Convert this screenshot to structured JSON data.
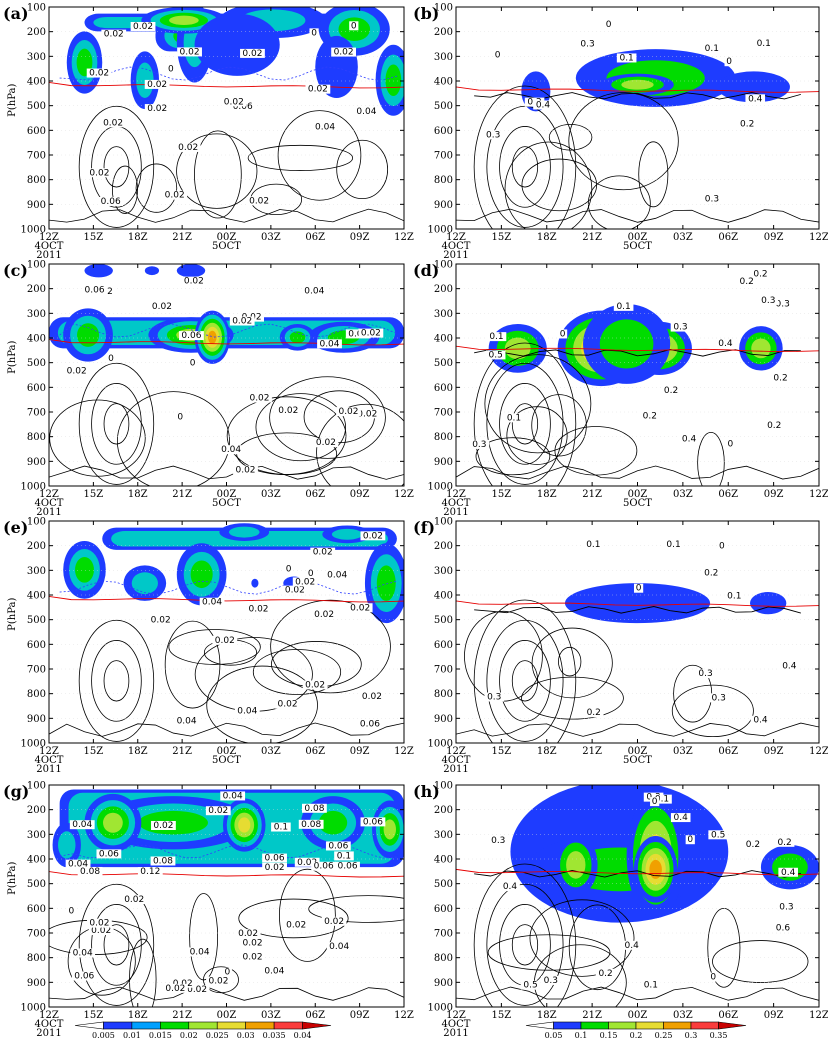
{
  "chart_data": [
    {
      "panel": "(a)",
      "type": "heatmap",
      "ylabel": "P(hPa)",
      "yticks": [
        "100",
        "200",
        "300",
        "400",
        "500",
        "600",
        "700",
        "800",
        "900",
        "1000"
      ],
      "ylim": [
        1000,
        100
      ],
      "xticks": [
        "12Z",
        "15Z",
        "18Z",
        "21Z",
        "00Z",
        "03Z",
        "06Z",
        "09Z",
        "12Z"
      ],
      "xdate_labels": [
        {
          "tick": 0,
          "text": "4OCT"
        },
        {
          "tick": 4,
          "text": "5OCT"
        }
      ],
      "year": "2011",
      "fill_scale": "a",
      "contour_labels": [
        "0.02",
        "0.02",
        "0.02",
        "0.02",
        "0.02",
        "0.02",
        "0.02",
        "0.02",
        "0",
        "0",
        "0",
        "0.02",
        "0.02",
        "0.04",
        "0.02",
        "0.06",
        "0.06",
        "0.04",
        "0.02",
        "0.02",
        "0.02",
        "0.02"
      ]
    },
    {
      "panel": "(b)",
      "type": "heatmap",
      "ylabel": "",
      "yticks": [
        "100",
        "200",
        "300",
        "400",
        "500",
        "600",
        "700",
        "800",
        "900",
        "1000"
      ],
      "ylim": [
        1000,
        100
      ],
      "xticks": [
        "12Z",
        "15Z",
        "18Z",
        "21Z",
        "00Z",
        "03Z",
        "06Z",
        "09Z",
        "12Z"
      ],
      "xdate_labels": [
        {
          "tick": 0,
          "text": "4OCT"
        },
        {
          "tick": 4,
          "text": "5OCT"
        }
      ],
      "year": "2011",
      "fill_scale": "b",
      "contour_labels": [
        "0.1",
        "0",
        "0.1",
        "0",
        "0.1",
        "0",
        "0.3",
        "0.2",
        "0.2",
        "0.4",
        "0.3",
        "0.4",
        "0.3"
      ]
    },
    {
      "panel": "(c)",
      "type": "heatmap",
      "ylabel": "P(hPa)",
      "yticks": [
        "100",
        "200",
        "300",
        "400",
        "500",
        "600",
        "700",
        "800",
        "900",
        "1000"
      ],
      "ylim": [
        1000,
        100
      ],
      "xticks": [
        "12Z",
        "15Z",
        "18Z",
        "21Z",
        "00Z",
        "03Z",
        "06Z",
        "09Z",
        "12Z"
      ],
      "xdate_labels": [
        {
          "tick": 0,
          "text": "4OCT"
        },
        {
          "tick": 4,
          "text": "5OCT"
        }
      ],
      "year": "2011",
      "fill_scale": "a",
      "contour_labels": [
        "0.02",
        "0.04",
        "0.02",
        "0.04",
        "0.02",
        "0.02",
        "0.02",
        "0.06",
        "0.06",
        "0.04",
        "0.02",
        "0",
        "0",
        "0",
        "0.04",
        "0.02",
        "0.02",
        "0.02",
        "0.02",
        "0.02",
        "0.02",
        "0.02"
      ]
    },
    {
      "panel": "(d)",
      "type": "heatmap",
      "ylabel": "",
      "yticks": [
        "100",
        "200",
        "300",
        "400",
        "500",
        "600",
        "700",
        "800",
        "900",
        "1000"
      ],
      "ylim": [
        1000,
        100
      ],
      "xticks": [
        "12Z",
        "15Z",
        "18Z",
        "21Z",
        "00Z",
        "03Z",
        "06Z",
        "09Z",
        "12Z"
      ],
      "xdate_labels": [
        {
          "tick": 0,
          "text": "4OCT"
        },
        {
          "tick": 4,
          "text": "5OCT"
        }
      ],
      "year": "2011",
      "fill_scale": "b",
      "contour_labels": [
        "0",
        "0.1",
        "0.3",
        "0.4",
        "0.1",
        "0.2",
        "0.2",
        "0.3",
        "0.3",
        "0",
        "0.2",
        "0.5",
        "0.2",
        "0.1",
        "0.2",
        "0.4",
        "0.3",
        "0.2"
      ]
    },
    {
      "panel": "(e)",
      "type": "heatmap",
      "ylabel": "P(hPa)",
      "yticks": [
        "100",
        "200",
        "300",
        "400",
        "500",
        "600",
        "700",
        "800",
        "900",
        "1000"
      ],
      "ylim": [
        1000,
        100
      ],
      "xticks": [
        "12Z",
        "15Z",
        "18Z",
        "21Z",
        "00Z",
        "03Z",
        "06Z",
        "09Z",
        "12Z"
      ],
      "xdate_labels": [
        {
          "tick": 0,
          "text": "4OCT"
        },
        {
          "tick": 4,
          "text": "5OCT"
        }
      ],
      "year": "2011",
      "fill_scale": "a",
      "contour_labels": [
        "0.02",
        "0.02",
        "0.02",
        "0",
        "0",
        "0.02",
        "0.02",
        "0.04",
        "0.04",
        "0.02",
        "0.02",
        "0.06",
        "0.04",
        "0.02",
        "0.02",
        "0.04",
        "0.02",
        "0.02",
        "0.02"
      ]
    },
    {
      "panel": "(f)",
      "type": "heatmap",
      "ylabel": "",
      "yticks": [
        "100",
        "200",
        "300",
        "400",
        "500",
        "600",
        "700",
        "800",
        "900",
        "1000"
      ],
      "ylim": [
        1000,
        100
      ],
      "xticks": [
        "12Z",
        "15Z",
        "18Z",
        "21Z",
        "00Z",
        "03Z",
        "06Z",
        "09Z",
        "12Z"
      ],
      "xdate_labels": [
        {
          "tick": 0,
          "text": "4OCT"
        },
        {
          "tick": 4,
          "text": "5OCT"
        }
      ],
      "year": "2011",
      "fill_scale": "b",
      "contour_labels": [
        "0.1",
        "0",
        "0.1",
        "0",
        "0.1",
        "0.2",
        "0.2",
        "0.3",
        "0.4",
        "0.3",
        "0.3",
        "0.4"
      ]
    },
    {
      "panel": "(g)",
      "type": "heatmap",
      "ylabel": "P(hPa)",
      "yticks": [
        "100",
        "200",
        "300",
        "400",
        "500",
        "600",
        "700",
        "800",
        "900",
        "1000"
      ],
      "ylim": [
        1000,
        100
      ],
      "xticks": [
        "12Z",
        "15Z",
        "18Z",
        "21Z",
        "00Z",
        "03Z",
        "06Z",
        "09Z",
        "12Z"
      ],
      "xdate_labels": [
        {
          "tick": 0,
          "text": "4OCT"
        }
      ],
      "year": "2011",
      "fill_scale": "a",
      "colorbar": {
        "ticks": [
          "0.005",
          "0.01",
          "0.015",
          "0.02",
          "0.025",
          "0.03",
          "0.035",
          "0.04"
        ],
        "colors": [
          "#ffffff",
          "#1e3cff",
          "#00a0ff",
          "#00dc00",
          "#a0e632",
          "#e6dc32",
          "#f0a000",
          "#fa3c3c",
          "#c80000"
        ]
      },
      "contour_labels": [
        "0.02",
        "0.04",
        "0.06",
        "0.02",
        "0.04",
        "0.06",
        "0.06",
        "0.02",
        "0.04",
        "0.1",
        "0.08",
        "0.06",
        "0.08",
        "0.12",
        "0.1",
        "0.08",
        "0.06",
        "0.08",
        "0.06",
        "0.02",
        "0.04",
        "0.02",
        "0.02",
        "0.04",
        "0.02",
        "0",
        "0",
        "0.02",
        "0.02",
        "0.04",
        "0.02",
        "0.02",
        "0.02",
        "0.02",
        "0.06",
        "0.04",
        "0.02",
        "0.02",
        "0.02"
      ]
    },
    {
      "panel": "(h)",
      "type": "heatmap",
      "ylabel": "",
      "yticks": [
        "100",
        "200",
        "300",
        "400",
        "500",
        "600",
        "700",
        "800",
        "900",
        "1000"
      ],
      "ylim": [
        1000,
        100
      ],
      "xticks": [
        "12Z",
        "15Z",
        "18Z",
        "21Z",
        "00Z",
        "03Z",
        "06Z",
        "09Z",
        "12Z"
      ],
      "xdate_labels": [
        {
          "tick": 0,
          "text": "4OCT"
        }
      ],
      "year": "2011",
      "fill_scale": "b",
      "colorbar": {
        "ticks": [
          "0.05",
          "0.1",
          "0.15",
          "0.2",
          "0.25",
          "0.3",
          "0.35"
        ],
        "colors": [
          "#ffffff",
          "#1e3cff",
          "#00dc00",
          "#a0e632",
          "#e6dc32",
          "#f0a000",
          "#fa3c3c",
          "#c80000"
        ]
      },
      "contour_labels": [
        "0.2",
        "0.3",
        "0.4",
        "0.5",
        "0",
        "0.1",
        "0.2",
        "0",
        "0.3",
        "0.4",
        "0.1",
        "0",
        "0.2",
        "0.6",
        "0.3",
        "0.4",
        "0.5",
        "0.4",
        "0.3"
      ]
    }
  ],
  "fill_colors": {
    "blue": "#1e3cff",
    "cyan": "#00c8c8",
    "green": "#00dc00",
    "lightgreen": "#a0e632",
    "yellow": "#e6dc32",
    "orange": "#f0a000",
    "red": "#fa3c3c",
    "zero_line": "#e60000",
    "dashed": "#3040ff"
  }
}
